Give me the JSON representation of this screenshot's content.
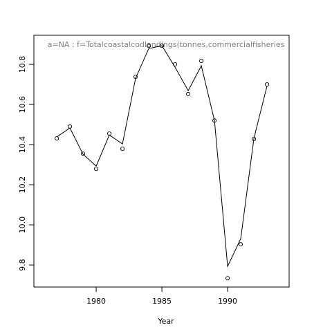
{
  "chart_data": {
    "type": "line",
    "title": "a=NA  :  f=Totalcoastalcodlandings(tonnes,commercialfisheries",
    "x_label": "Year",
    "x": [
      1977,
      1978,
      1979,
      1980,
      1981,
      1982,
      1983,
      1984,
      1985,
      1986,
      1987,
      1988,
      1989,
      1990,
      1991,
      1992,
      1993
    ],
    "series": [
      {
        "style": "points",
        "color": "#000000",
        "values": [
          10.431,
          10.49,
          10.355,
          10.279,
          10.455,
          10.379,
          10.738,
          10.893,
          10.893,
          10.8,
          10.652,
          10.817,
          10.52,
          9.734,
          9.903,
          10.428,
          10.7
        ]
      },
      {
        "style": "line",
        "color": "#000000",
        "values": [
          10.438,
          10.483,
          10.352,
          10.293,
          10.448,
          10.403,
          10.731,
          10.879,
          10.893,
          10.786,
          10.669,
          10.793,
          10.52,
          9.793,
          9.931,
          10.431,
          10.693
        ]
      }
    ],
    "xlim": [
      1975.26,
      1994.68
    ],
    "xticks": [
      1980,
      1985,
      1990
    ],
    "ylim": [
      9.69,
      10.945
    ],
    "yticks": [
      {
        "value": 9.8,
        "label": "9.8"
      },
      {
        "value": 10.0,
        "label": "10.0"
      },
      {
        "value": 10.2,
        "label": "10.2"
      },
      {
        "value": 10.4,
        "label": "10.4"
      },
      {
        "value": 10.6,
        "label": "10.6"
      },
      {
        "value": 10.8,
        "label": "10.8"
      }
    ],
    "title_color": "#808080"
  }
}
